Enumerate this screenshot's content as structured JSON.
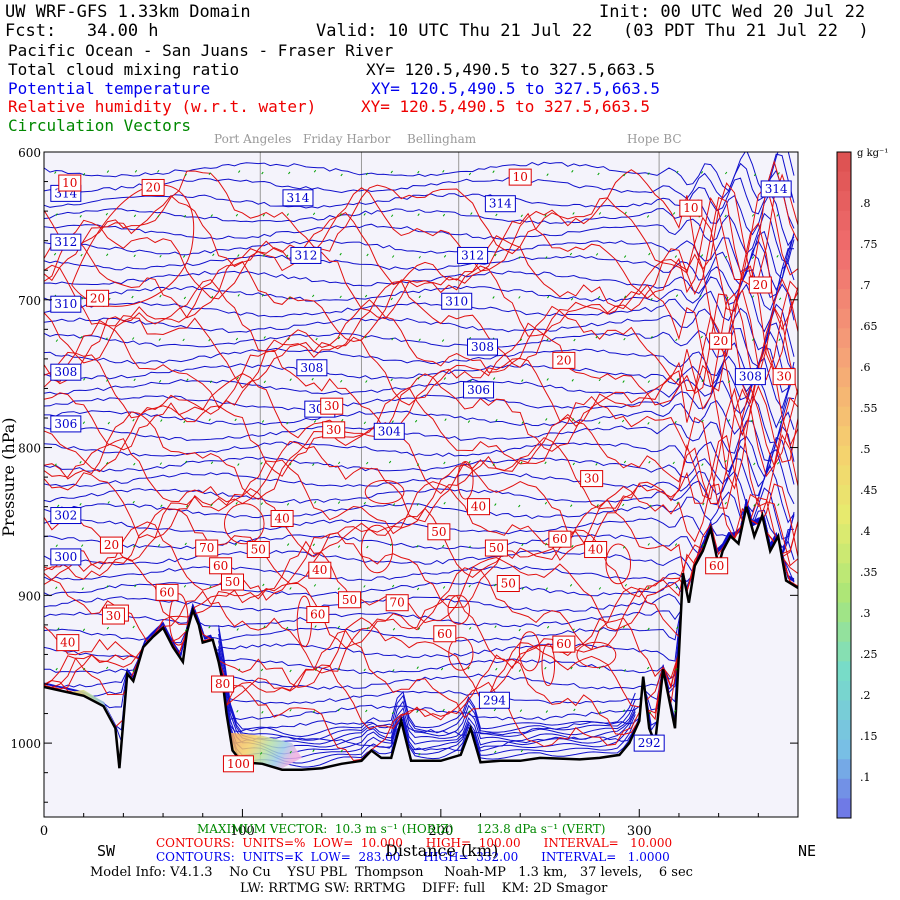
{
  "header": {
    "line1_left": "UW WRF-GFS 1.33km Domain",
    "line1_right": "Init: 00 UTC Wed 20 Jul 22",
    "line2_left": "Fcst:   34.00 h",
    "line2_right": "Valid: 10 UTC Thu 21 Jul 22   (03 PDT Thu 21 Jul 22  )",
    "region": "Pacific Ocean - San Juans - Fraser River"
  },
  "fields": [
    {
      "name": "Total cloud mixing ratio",
      "xy": "XY= 120.5,490.5 to 327.5,663.5",
      "color": "#000000"
    },
    {
      "name": "Potential temperature",
      "xy": "XY= 120.5,490.5 to 327.5,663.5",
      "color": "#0000ee"
    },
    {
      "name": "Relative humidity (w.r.t. water)",
      "xy": "XY= 120.5,490.5 to 327.5,663.5",
      "color": "#ee0000"
    },
    {
      "name": "Circulation Vectors",
      "xy": "",
      "color": "#008800"
    }
  ],
  "places": [
    "Port Angeles",
    "Friday Harbor",
    "Bellingham",
    "Hope BC"
  ],
  "colorbar": {
    "unit": "g kg⁻¹",
    "ticks": [
      ".8",
      ".75",
      ".7",
      ".65",
      ".6",
      ".55",
      ".5",
      ".45",
      ".4",
      ".35",
      ".3",
      ".25",
      ".2",
      ".15",
      ".1"
    ]
  },
  "footer": {
    "max_vector": "MAXIMUM VECTOR:  10.3 m s⁻¹ (HORIZ)      123.8 dPa s⁻¹ (VERT)",
    "rh_contours": "CONTOURS:  UNITS=%  LOW=  10.000      HIGH=  100.00      INTERVAL=   10.000",
    "theta_contours": "CONTOURS:  UNITS=K  LOW=  283.00      HIGH=  332.00      INTERVAL=   1.0000",
    "model_info": "Model Info: V4.1.3    No Cu    YSU PBL  Thompson     Noah-MP   1.3 km,   37 levels,    6 sec",
    "model_info2": "LW: RRTMG SW: RRTMG    DIFF: full    KM: 2D Smagor",
    "dir_left": "SW",
    "dir_right": "NE",
    "xaxis_label": "Distance (km)"
  },
  "chart_data": {
    "type": "contour",
    "title": "UW WRF-GFS 1.33km Domain",
    "xlabel": "Distance (km)",
    "ylabel": "Pressure (hPa)",
    "xlim": [
      0,
      380
    ],
    "ylim": [
      1050,
      600
    ],
    "xticks": [
      0,
      100,
      200,
      300
    ],
    "yticks": [
      600,
      700,
      800,
      900,
      1000
    ],
    "ytick_labels": [
      "600",
      "700",
      "800",
      "900",
      "1000"
    ],
    "vertical_markers_km": [
      109,
      160,
      209,
      310
    ],
    "theta_labels": [
      {
        "x": 11,
        "y": 628,
        "v": "314"
      },
      {
        "x": 128,
        "y": 631,
        "v": "314"
      },
      {
        "x": 230,
        "y": 635,
        "v": "314"
      },
      {
        "x": 369,
        "y": 625,
        "v": "314"
      },
      {
        "x": 11,
        "y": 661,
        "v": "312"
      },
      {
        "x": 132,
        "y": 670,
        "v": "312"
      },
      {
        "x": 216,
        "y": 670,
        "v": "312"
      },
      {
        "x": 11,
        "y": 703,
        "v": "310"
      },
      {
        "x": 208,
        "y": 701,
        "v": "310"
      },
      {
        "x": 11,
        "y": 749,
        "v": "308"
      },
      {
        "x": 135,
        "y": 746,
        "v": "308"
      },
      {
        "x": 221,
        "y": 732,
        "v": "308"
      },
      {
        "x": 356,
        "y": 752,
        "v": "308"
      },
      {
        "x": 11,
        "y": 784,
        "v": "306"
      },
      {
        "x": 139,
        "y": 774,
        "v": "306"
      },
      {
        "x": 219,
        "y": 761,
        "v": "306"
      },
      {
        "x": 174,
        "y": 789,
        "v": "304"
      },
      {
        "x": 11,
        "y": 846,
        "v": "302"
      },
      {
        "x": 11,
        "y": 874,
        "v": "300"
      },
      {
        "x": 227,
        "y": 971,
        "v": "294"
      },
      {
        "x": 305,
        "y": 1000,
        "v": "292"
      }
    ],
    "rh_labels": [
      {
        "x": 13,
        "y": 621,
        "v": "10"
      },
      {
        "x": 55,
        "y": 624,
        "v": "20"
      },
      {
        "x": 240,
        "y": 617,
        "v": "10"
      },
      {
        "x": 326,
        "y": 638,
        "v": "10"
      },
      {
        "x": 27,
        "y": 699,
        "v": "20"
      },
      {
        "x": 361,
        "y": 690,
        "v": "20"
      },
      {
        "x": 262,
        "y": 741,
        "v": "20"
      },
      {
        "x": 341,
        "y": 728,
        "v": "20"
      },
      {
        "x": 373,
        "y": 752,
        "v": "30"
      },
      {
        "x": 145,
        "y": 772,
        "v": "30"
      },
      {
        "x": 146,
        "y": 788,
        "v": "30"
      },
      {
        "x": 276,
        "y": 821,
        "v": "30"
      },
      {
        "x": 120,
        "y": 848,
        "v": "40"
      },
      {
        "x": 219,
        "y": 840,
        "v": "40"
      },
      {
        "x": 278,
        "y": 869,
        "v": "40"
      },
      {
        "x": 139,
        "y": 883,
        "v": "40"
      },
      {
        "x": 12,
        "y": 932,
        "v": "40"
      },
      {
        "x": 199,
        "y": 857,
        "v": "50"
      },
      {
        "x": 108,
        "y": 869,
        "v": "50"
      },
      {
        "x": 228,
        "y": 868,
        "v": "50"
      },
      {
        "x": 95,
        "y": 891,
        "v": "50"
      },
      {
        "x": 234,
        "y": 892,
        "v": "50"
      },
      {
        "x": 154,
        "y": 903,
        "v": "50"
      },
      {
        "x": 260,
        "y": 862,
        "v": "60"
      },
      {
        "x": 62,
        "y": 898,
        "v": "60"
      },
      {
        "x": 202,
        "y": 926,
        "v": "60"
      },
      {
        "x": 138,
        "y": 913,
        "v": "60"
      },
      {
        "x": 262,
        "y": 933,
        "v": "60"
      },
      {
        "x": 89,
        "y": 880,
        "v": "60"
      },
      {
        "x": 82,
        "y": 868,
        "v": "70"
      },
      {
        "x": 178,
        "y": 905,
        "v": "70"
      },
      {
        "x": 37,
        "y": 912,
        "v": "70"
      },
      {
        "x": 339,
        "y": 880,
        "v": "60"
      },
      {
        "x": 34,
        "y": 866,
        "v": "20"
      },
      {
        "x": 35,
        "y": 914,
        "v": "30"
      },
      {
        "x": 98,
        "y": 1014,
        "v": "100"
      },
      {
        "x": 90,
        "y": 960,
        "v": "80"
      }
    ]
  }
}
